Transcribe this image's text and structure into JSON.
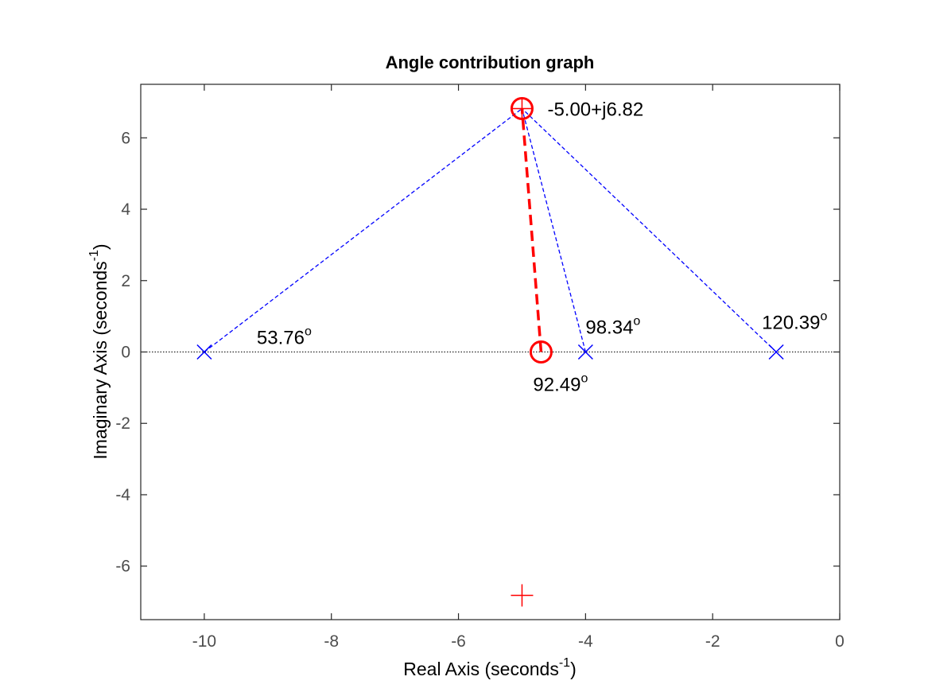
{
  "chart_data": {
    "type": "scatter",
    "title": "Angle contribution graph",
    "xlabel": {
      "text": "Real Axis (seconds",
      "sup": "-1",
      "suffix": ")"
    },
    "ylabel": {
      "text": "Imaginary Axis (seconds",
      "sup": "-1",
      "suffix": ")"
    },
    "xlim": [
      -11,
      0
    ],
    "ylim": [
      -7.5,
      7.5
    ],
    "xticks": [
      -10,
      -8,
      -6,
      -4,
      -2,
      0
    ],
    "yticks": [
      -6,
      -4,
      -2,
      0,
      2,
      4,
      6
    ],
    "grid": false,
    "legend": "none",
    "poles": [
      {
        "x": -10,
        "y": 0
      },
      {
        "x": -4,
        "y": 0
      },
      {
        "x": -1,
        "y": 0
      }
    ],
    "zeros": [
      {
        "x": -4.7,
        "y": 0
      }
    ],
    "test_point": {
      "x": -5,
      "y": 6.82,
      "label": "-5.00+j6.82"
    },
    "conjugate_point": {
      "x": -5,
      "y": -6.82
    },
    "angle_labels": [
      {
        "text": "53.76",
        "x": -10,
        "y": 0
      },
      {
        "text": "98.34",
        "x": -4,
        "y": 0
      },
      {
        "text": "120.39",
        "x": -1,
        "y": 0
      },
      {
        "text": "92.49",
        "x": -4.7,
        "y": 0
      }
    ],
    "degree_symbol": "o",
    "colors": {
      "pole": "#0000ff",
      "pole_line": "#0000ff",
      "zero": "#ff0000",
      "zero_line": "#ff0000",
      "axis": "#262626",
      "tick_text": "#4d4d4d",
      "zero_axis_line": "#000000"
    }
  }
}
